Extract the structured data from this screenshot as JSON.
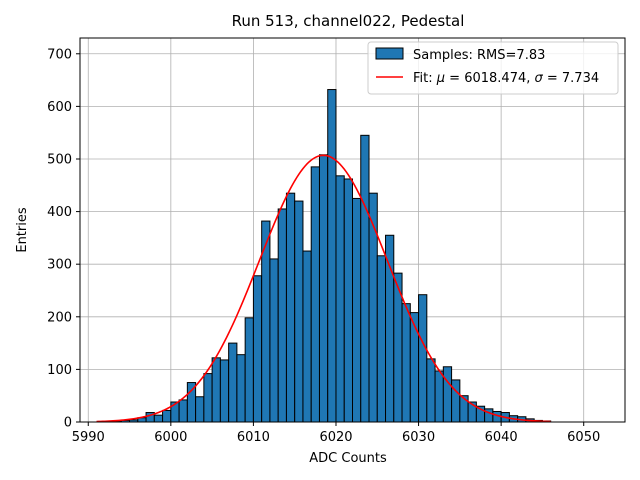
{
  "chart_data": {
    "type": "bar",
    "title": "Run 513, channel022, Pedestal",
    "xlabel": "ADC Counts",
    "ylabel": "Entries",
    "xlim": [
      5989,
      6055
    ],
    "ylim": [
      0,
      730
    ],
    "xticks": [
      5990,
      6000,
      6010,
      6020,
      6030,
      6040,
      6050
    ],
    "yticks": [
      0,
      100,
      200,
      300,
      400,
      500,
      600,
      700
    ],
    "grid": true,
    "legend_position": "top-right",
    "bin_start": 5991,
    "bin_width": 1,
    "histogram": {
      "name": "Samples: RMS=7.83",
      "color": "#1f77b4",
      "edge_color": "#000000",
      "values": [
        0,
        1,
        2,
        3,
        4,
        8,
        18,
        13,
        22,
        38,
        42,
        75,
        48,
        92,
        122,
        118,
        150,
        128,
        198,
        278,
        382,
        310,
        405,
        435,
        420,
        325,
        485,
        508,
        632,
        468,
        462,
        425,
        545,
        435,
        316,
        355,
        283,
        225,
        208,
        242,
        120,
        97,
        105,
        80,
        50,
        38,
        30,
        25,
        20,
        18,
        12,
        10,
        6,
        3,
        2
      ]
    },
    "fit": {
      "name": "Fit: μ = 6018.474, σ = 7.734",
      "color": "#ff0000",
      "mu": 6018.474,
      "sigma": 7.734,
      "amplitude": 507,
      "x_range": [
        5991,
        6046
      ]
    }
  },
  "legend": {
    "hist_label_prefix": "Samples: RMS=7.83",
    "fit_label_prefix": "Fit: ",
    "fit_mu_symbol": "μ",
    "fit_mu_value": " = 6018.474, ",
    "fit_sigma_symbol": "σ",
    "fit_sigma_value": " = 7.734"
  }
}
